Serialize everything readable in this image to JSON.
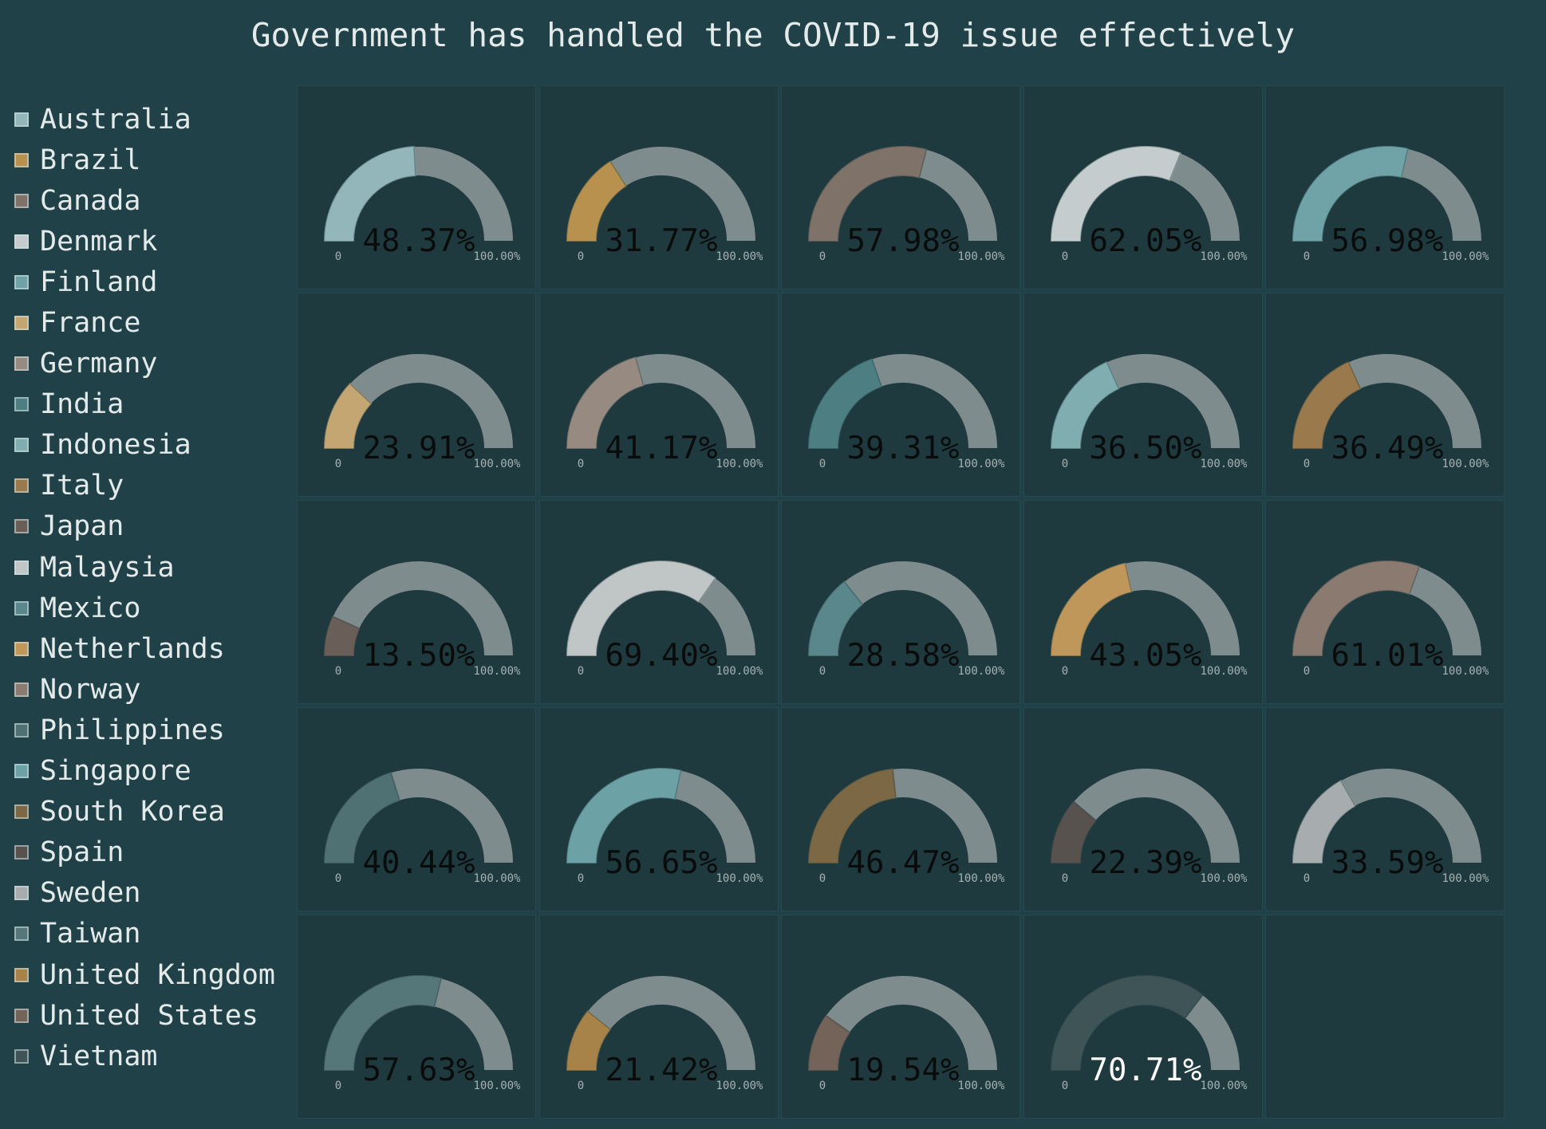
{
  "chart_data": {
    "type": "gauge",
    "title": "Government has handled the COVID-19 issue effectively",
    "axis_min_label": "0",
    "axis_max_label": "100.00%",
    "ylim": [
      0,
      100
    ],
    "track_color": "#7f8c8e",
    "legend_placement": "left",
    "series": [
      {
        "name": "Australia",
        "value": 48.37,
        "label": "48.37%",
        "color": "#93b6ba"
      },
      {
        "name": "Brazil",
        "value": 31.77,
        "label": "31.77%",
        "color": "#b8914f"
      },
      {
        "name": "Canada",
        "value": 57.98,
        "label": "57.98%",
        "color": "#7f7268"
      },
      {
        "name": "Denmark",
        "value": 62.05,
        "label": "62.05%",
        "color": "#c5cccd"
      },
      {
        "name": "Finland",
        "value": 56.98,
        "label": "56.98%",
        "color": "#6fa3a8"
      },
      {
        "name": "France",
        "value": 23.91,
        "label": "23.91%",
        "color": "#c4a672"
      },
      {
        "name": "Germany",
        "value": 41.17,
        "label": "41.17%",
        "color": "#978a80"
      },
      {
        "name": "India",
        "value": 39.31,
        "label": "39.31%",
        "color": "#4d7e82"
      },
      {
        "name": "Indonesia",
        "value": 36.5,
        "label": "36.50%",
        "color": "#80adb0"
      },
      {
        "name": "Italy",
        "value": 36.49,
        "label": "36.49%",
        "color": "#9a7a4c"
      },
      {
        "name": "Japan",
        "value": 13.5,
        "label": "13.50%",
        "color": "#6a5e58"
      },
      {
        "name": "Malaysia",
        "value": 69.4,
        "label": "69.40%",
        "color": "#c0c5c6"
      },
      {
        "name": "Mexico",
        "value": 28.58,
        "label": "28.58%",
        "color": "#5a878b"
      },
      {
        "name": "Netherlands",
        "value": 43.05,
        "label": "43.05%",
        "color": "#c0975a"
      },
      {
        "name": "Norway",
        "value": 61.01,
        "label": "61.01%",
        "color": "#8a7a70"
      },
      {
        "name": "Philippines",
        "value": 40.44,
        "label": "40.44%",
        "color": "#507174"
      },
      {
        "name": "Singapore",
        "value": 56.65,
        "label": "56.65%",
        "color": "#6ca1a6"
      },
      {
        "name": "South Korea",
        "value": 46.47,
        "label": "46.47%",
        "color": "#7c6844"
      },
      {
        "name": "Spain",
        "value": 22.39,
        "label": "22.39%",
        "color": "#57524e"
      },
      {
        "name": "Sweden",
        "value": 33.59,
        "label": "33.59%",
        "color": "#a7adae"
      },
      {
        "name": "Taiwan",
        "value": 57.63,
        "label": "57.63%",
        "color": "#56777a"
      },
      {
        "name": "United Kingdom",
        "value": 21.42,
        "label": "21.42%",
        "color": "#a78249"
      },
      {
        "name": "United States",
        "value": 19.54,
        "label": "19.54%",
        "color": "#736359"
      },
      {
        "name": "Vietnam",
        "value": 70.71,
        "label": "70.71%",
        "color": "#3f5457"
      }
    ]
  }
}
